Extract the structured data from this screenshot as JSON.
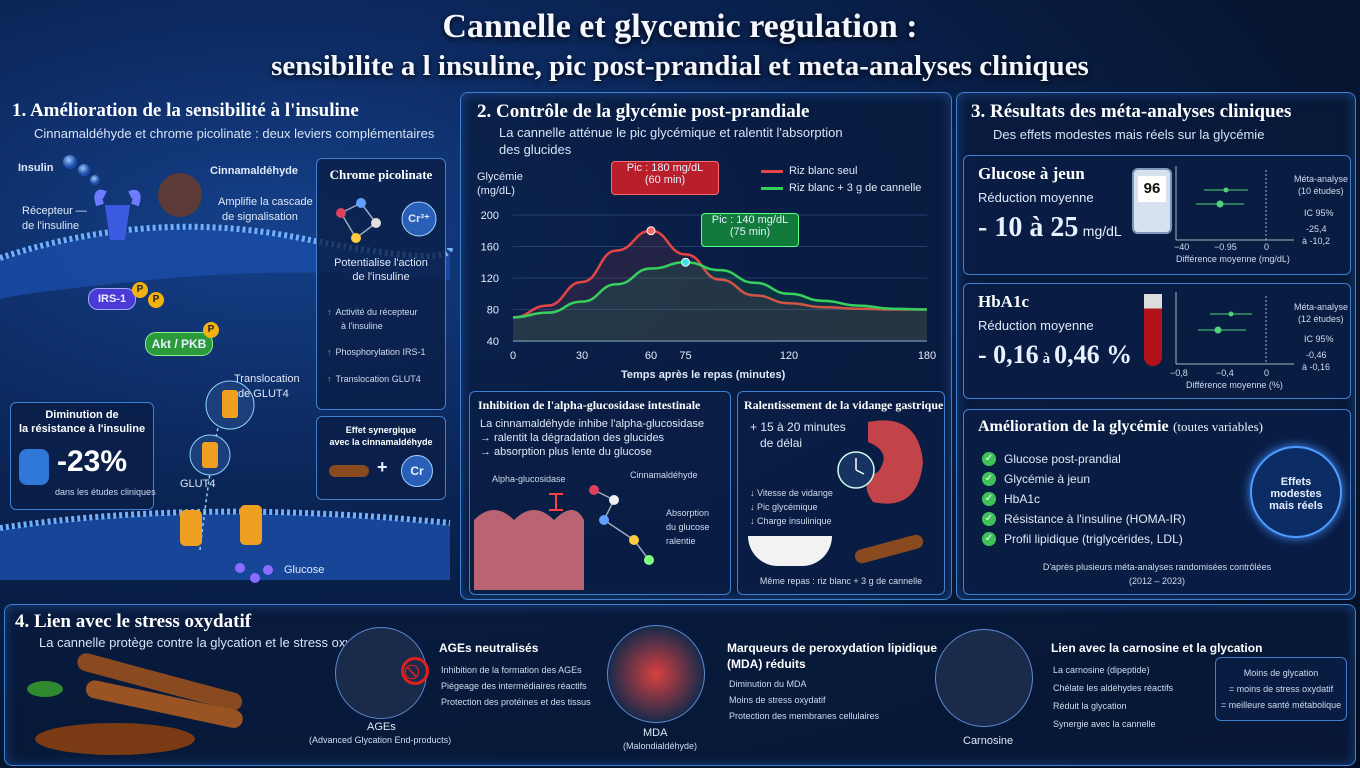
{
  "title": {
    "line1": "Cannelle et glycemic regulation :",
    "line2": "sensibilite a l insuline, pic post-prandial et meta-analyses cliniques"
  },
  "s1": {
    "title": "1.  Amélioration de la sensibilité à l'insuline",
    "subtitle": "Cinnamaldéhyde et chrome picolinate : deux leviers complémentaires",
    "insulin": "Insulin",
    "cinnamaldehyde": "Cinnamaldéhyde",
    "receptor1": "Récepteur —",
    "receptor2": "de l'insuline",
    "amplify1": "Amplifie la cascade",
    "amplify2": "de signalisation",
    "irs": "IRS-1",
    "p": "P",
    "akt": "Akt / PKB",
    "transloc1": "Translocation",
    "transloc2": "de GLUT4",
    "glut4": "GLUT4",
    "glucose": "Glucose",
    "dim1": "Diminution de",
    "dim2": "la résistance à l'insuline",
    "dim_value": "-23%",
    "dim_note": "dans les études cliniques",
    "chrome_title": "Chrome picolinate",
    "cr": "Cr³⁺",
    "pot1": "Potentialise l'action",
    "pot2": "de l'insuline",
    "act1a": "Activité du récepteur",
    "act1b": "à l'insuline",
    "act2": "Phosphorylation IRS-1",
    "act3": "Translocation GLUT4",
    "syn1": "Effet synergique",
    "syn2": "avec la cinnamaldéhyde",
    "plus": "+",
    "cr2": "Cr"
  },
  "s2": {
    "title": "2.  Contrôle de la glycémie post-prandiale",
    "sub1": "La cannelle atténue le pic glycémique et ralentit l'absorption",
    "sub2": "des glucides",
    "ylabel1": "Glycémie",
    "ylabel2": "(mg/dL)",
    "xlabel": "Temps après le repas (minutes)",
    "peak1a": "Pic : 180 mg/dL",
    "peak1b": "(60 min)",
    "peak2a": "Pic : 140 mg/dL",
    "peak2b": "(75 min)",
    "inh_title": "Inhibition de l'alpha-glucosidase intestinale",
    "inh1": "La cinnamaldéhyde inhibe l'alpha-glucosidase",
    "inh2": "→ ralentit la dégradation des glucides",
    "inh3": "→ absorption plus lente du glucose",
    "alpha": "Alpha-glucosidase",
    "cinna": "Cinnamaldéhyde",
    "abs1": "Absorption",
    "abs2": "du glucose",
    "abs3": "ralentie",
    "vid_title": "Ralentissement de la vidange gastrique",
    "vid1": "+ 15 à 20 minutes",
    "vid2": "de délai",
    "vid3": "↓ Vitesse de vidange",
    "vid4": "↓ Pic glycémique",
    "vid5": "↓ Charge insulinique",
    "meal": "Même repas : riz blanc + 3 g de cannelle"
  },
  "chart_data": {
    "type": "line",
    "x": [
      0,
      15,
      30,
      45,
      60,
      75,
      90,
      105,
      120,
      135,
      150,
      165,
      180
    ],
    "xticks": [
      0,
      30,
      60,
      75,
      120,
      180
    ],
    "yticks": [
      40,
      80,
      120,
      160,
      200
    ],
    "xlim": [
      0,
      180
    ],
    "ylim": [
      40,
      200
    ],
    "series": [
      {
        "name": "Riz blanc seul",
        "color": "#e64545",
        "values": [
          70,
          85,
          115,
          155,
          180,
          150,
          118,
          98,
          88,
          83,
          81,
          80,
          80
        ]
      },
      {
        "name": "Riz blanc + 3 g de cannelle",
        "color": "#35d15c",
        "values": [
          70,
          76,
          90,
          112,
          132,
          140,
          130,
          114,
          100,
          91,
          85,
          81,
          80
        ]
      }
    ],
    "xlabel": "Temps après le repas (minutes)",
    "ylabel": "Glycémie (mg/dL)",
    "legend": "top-right"
  },
  "s3": {
    "title": "3.  Résultats des méta-analyses  cliniques",
    "subtitle": "Des effets modestes mais réels sur la glycémie",
    "g_title": "Glucose à jeun",
    "g_red": "Réduction moyenne",
    "g_val": "- 10 à 25",
    "g_unit": "mg/dL",
    "meter": "96",
    "g_meta1": "Méta-analyse",
    "g_meta2": "(10 études)",
    "g_ic": "IC 95%",
    "g_ic1": "-25,4",
    "g_ic2": "à -10,2",
    "g_ticks": [
      "−40",
      "−0.95",
      "0"
    ],
    "g_axis": "Différence moyenne (mg/dL)",
    "h_title": "HbA1c",
    "h_red": "Réduction moyenne",
    "h_val": "- 0,16",
    "h_a": "à",
    "h_val2": "0,46 %",
    "h_meta1": "Méta-analyse",
    "h_meta2": "(12 études)",
    "h_ic": "IC 95%",
    "h_ic1": "-0,46",
    "h_ic2": "à -0,16",
    "h_ticks": [
      "−0,8",
      "−0,4",
      "0"
    ],
    "h_axis": "Différence moyenne (%)",
    "amel_title": "Amélioration de la glycémie",
    "amel_sub": "(toutes variables)",
    "items": [
      "Glucose post-prandial",
      "Glycémie à jeun",
      "HbA1c",
      "Résistance à l'insuline (HOMA-IR)",
      "Profil lipidique (triglycérides, LDL)"
    ],
    "effets1": "Effets",
    "effets2": "modestes",
    "effets3": "mais réels",
    "src1": "D'après plusieurs méta-analyses randomisées contrôlées",
    "src2": "(2012 – 2023)"
  },
  "s4": {
    "title": "4.  Lien avec le stress oxydatif",
    "subtitle": "La cannelle protège contre la glycation et le stress oxydatif",
    "ages_title": "AGEs neutralisés",
    "ages1": "Inhibition de la formation des AGEs",
    "ages2": "Piégeage des intermédiaires réactifs",
    "ages3": "Protection des protéines et des tissus",
    "ages_cap1": "AGEs",
    "ages_cap2": "(Advanced Glycation End-products)",
    "mda_title1": "Marqueurs de peroxydation lipidique",
    "mda_title2": "(MDA) réduits",
    "mda1": "Diminution du MDA",
    "mda2": "Moins de stress oxydatif",
    "mda3": "Protection des membranes cellulaires",
    "mda_cap1": "MDA",
    "mda_cap2": "(Malondialdéhyde)",
    "car_title": "Lien avec la carnosine et la glycation",
    "car1": "La carnosine (dipeptide)",
    "car2": "Chélate les aldéhydes réactifs",
    "car3": "Réduit la glycation",
    "car4": "Synergie avec la cannelle",
    "car_cap": "Carnosine",
    "moins1": "Moins de glycation",
    "moins2": "= moins de stress oxydatif",
    "moins3": "= meilleure santé métabolique"
  }
}
